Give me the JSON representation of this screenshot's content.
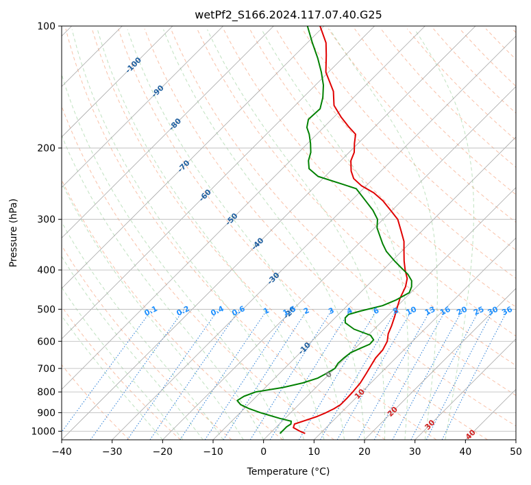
{
  "chart_data": {
    "type": "line",
    "title": "wetPf2_S166.2024.117.07.40.G25",
    "xlabel": "Temperature (°C)",
    "ylabel": "Pressure (hPa)",
    "xlim": [
      -40,
      50
    ],
    "ylim": [
      1050,
      100
    ],
    "y_scale": "log",
    "x_ticks": [
      -40,
      -30,
      -20,
      -10,
      0,
      10,
      20,
      30,
      40,
      50
    ],
    "y_ticks": [
      100,
      200,
      300,
      400,
      500,
      600,
      700,
      800,
      900,
      1000
    ],
    "skew_lines": "isotherms",
    "grid": true,
    "series": [
      {
        "color": "#e00000",
        "points": [
          [
            1013,
            7.0
          ],
          [
            1000,
            5.5
          ],
          [
            980,
            3.5
          ],
          [
            960,
            3.0
          ],
          [
            940,
            4.5
          ],
          [
            920,
            6.0
          ],
          [
            900,
            7.0
          ],
          [
            880,
            7.8
          ],
          [
            860,
            8.3
          ],
          [
            830,
            8.3
          ],
          [
            800,
            8.2
          ],
          [
            760,
            7.9
          ],
          [
            720,
            7.2
          ],
          [
            690,
            6.6
          ],
          [
            660,
            6.0
          ],
          [
            630,
            5.8
          ],
          [
            600,
            5.0
          ],
          [
            575,
            3.7
          ],
          [
            550,
            2.8
          ],
          [
            520,
            1.5
          ],
          [
            500,
            0.5
          ],
          [
            470,
            -1.0
          ],
          [
            440,
            -2.2
          ],
          [
            420,
            -3.5
          ],
          [
            400,
            -5.6
          ],
          [
            380,
            -7.6
          ],
          [
            360,
            -9.5
          ],
          [
            340,
            -11.5
          ],
          [
            320,
            -14.2
          ],
          [
            300,
            -17.1
          ],
          [
            285,
            -20.3
          ],
          [
            270,
            -23.7
          ],
          [
            258,
            -27.1
          ],
          [
            248,
            -30.9
          ],
          [
            238,
            -33.9
          ],
          [
            228,
            -35.9
          ],
          [
            215,
            -38.0
          ],
          [
            205,
            -39.0
          ],
          [
            195,
            -40.7
          ],
          [
            185,
            -42.3
          ],
          [
            178,
            -44.9
          ],
          [
            168,
            -48.5
          ],
          [
            157,
            -52.3
          ],
          [
            145,
            -55.2
          ],
          [
            130,
            -60.5
          ],
          [
            118,
            -63.8
          ],
          [
            110,
            -66.3
          ],
          [
            100,
            -70.8
          ]
        ]
      },
      {
        "color": "#008000",
        "points": [
          [
            1013,
            2.0
          ],
          [
            1000,
            2.0
          ],
          [
            990,
            2.0
          ],
          [
            975,
            2.0
          ],
          [
            960,
            2.3
          ],
          [
            945,
            1.8
          ],
          [
            930,
            -1.0
          ],
          [
            900,
            -6.0
          ],
          [
            880,
            -9.0
          ],
          [
            860,
            -11.5
          ],
          [
            840,
            -13.0
          ],
          [
            820,
            -12.5
          ],
          [
            800,
            -11.0
          ],
          [
            780,
            -6.5
          ],
          [
            760,
            -3.5
          ],
          [
            740,
            -1.5
          ],
          [
            720,
            -0.7
          ],
          [
            700,
            0.0
          ],
          [
            680,
            -0.4
          ],
          [
            660,
            -0.3
          ],
          [
            640,
            0.0
          ],
          [
            625,
            1.0
          ],
          [
            610,
            2.1
          ],
          [
            595,
            2.0
          ],
          [
            580,
            0.5
          ],
          [
            560,
            -4.0
          ],
          [
            540,
            -7.0
          ],
          [
            525,
            -8.0
          ],
          [
            515,
            -8.0
          ],
          [
            505,
            -6.3
          ],
          [
            490,
            -3.0
          ],
          [
            475,
            -1.5
          ],
          [
            455,
            -0.3
          ],
          [
            440,
            -1.0
          ],
          [
            425,
            -2.2
          ],
          [
            410,
            -4.2
          ],
          [
            395,
            -6.8
          ],
          [
            380,
            -9.5
          ],
          [
            360,
            -13.0
          ],
          [
            345,
            -15.2
          ],
          [
            330,
            -17.3
          ],
          [
            315,
            -19.5
          ],
          [
            300,
            -21.1
          ],
          [
            285,
            -23.8
          ],
          [
            268,
            -27.6
          ],
          [
            252,
            -31.4
          ],
          [
            245,
            -35.4
          ],
          [
            235,
            -41.4
          ],
          [
            225,
            -44.7
          ],
          [
            215,
            -46.4
          ],
          [
            205,
            -47.6
          ],
          [
            195,
            -49.4
          ],
          [
            185,
            -51.5
          ],
          [
            178,
            -53.3
          ],
          [
            170,
            -54.6
          ],
          [
            160,
            -54.4
          ],
          [
            150,
            -56.1
          ],
          [
            140,
            -58.4
          ],
          [
            130,
            -61.4
          ],
          [
            120,
            -64.9
          ],
          [
            110,
            -69.0
          ],
          [
            100,
            -73.3
          ]
        ]
      }
    ],
    "isotherm_labels": [
      "-100",
      "-90",
      "-80",
      "-70",
      "-60",
      "-50",
      "-40",
      "-30",
      "-20",
      "-10",
      "0",
      "10",
      "20",
      "30",
      "40"
    ],
    "mixing_ratio_labels": [
      "0.1",
      "0.2",
      "0.4",
      "0.6",
      "1",
      "1.5",
      "2",
      "3",
      "4",
      "6",
      "8",
      "10",
      "13",
      "16",
      "20",
      "25",
      "30",
      "36"
    ]
  }
}
